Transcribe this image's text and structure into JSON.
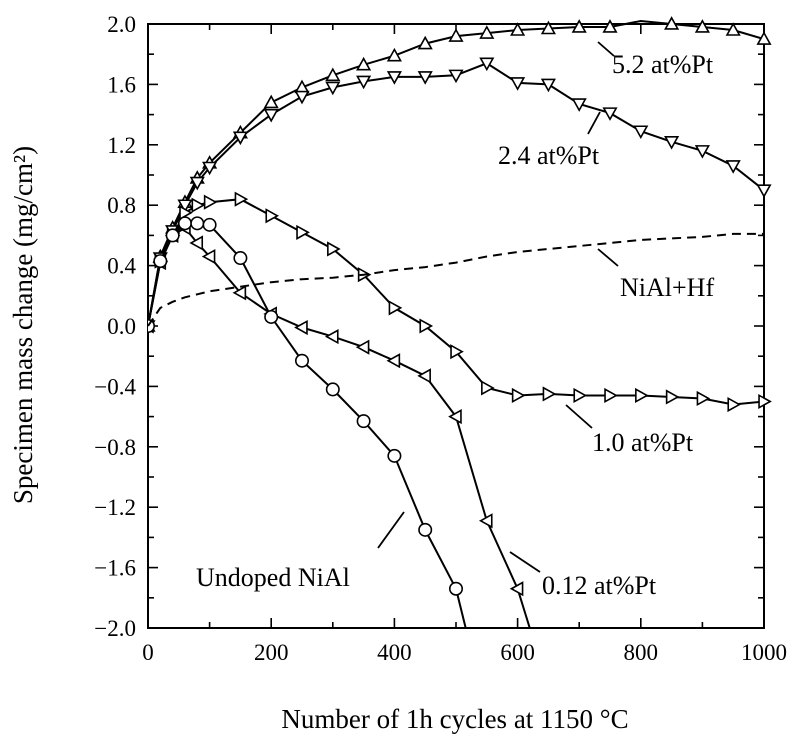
{
  "chart_data": {
    "type": "line",
    "title": "",
    "xlabel": "Number of 1h cycles at 1150 °C",
    "ylabel": "Specimen mass change (mg/cm²)",
    "xlim": [
      0,
      1000
    ],
    "ylim": [
      -2.0,
      2.0
    ],
    "x_ticks": [
      "0",
      "200",
      "400",
      "600",
      "800",
      "1000"
    ],
    "y_ticks": [
      "−2.0",
      "−1.6",
      "−1.2",
      "−0.8",
      "−0.4",
      "0.0",
      "0.4",
      "0.8",
      "1.2",
      "1.6",
      "2.0"
    ],
    "grid": false,
    "series": [
      {
        "name": "5.2 at%Pt",
        "marker": "triangle-up",
        "dash": "solid",
        "x": [
          0,
          20,
          40,
          60,
          80,
          100,
          150,
          200,
          250,
          300,
          350,
          400,
          450,
          500,
          550,
          600,
          650,
          700,
          750,
          800,
          850,
          900,
          950,
          1000
        ],
        "y": [
          0.0,
          0.46,
          0.65,
          0.82,
          0.98,
          1.08,
          1.28,
          1.48,
          1.58,
          1.66,
          1.73,
          1.79,
          1.87,
          1.92,
          1.94,
          1.96,
          1.97,
          1.98,
          1.98,
          2.02,
          2.0,
          1.98,
          1.96,
          1.9
        ]
      },
      {
        "name": "2.4 at%Pt",
        "marker": "triangle-down",
        "dash": "solid",
        "x": [
          0,
          20,
          40,
          60,
          80,
          100,
          150,
          200,
          250,
          300,
          350,
          400,
          450,
          500,
          550,
          600,
          650,
          700,
          750,
          800,
          850,
          900,
          950,
          1000
        ],
        "y": [
          0.0,
          0.45,
          0.63,
          0.8,
          0.95,
          1.05,
          1.25,
          1.4,
          1.52,
          1.58,
          1.62,
          1.65,
          1.65,
          1.66,
          1.74,
          1.61,
          1.6,
          1.47,
          1.41,
          1.29,
          1.22,
          1.16,
          1.06,
          0.9
        ]
      },
      {
        "name": "1.0 at%Pt",
        "marker": "triangle-right",
        "dash": "solid",
        "x": [
          0,
          20,
          40,
          60,
          80,
          100,
          150,
          200,
          250,
          300,
          350,
          400,
          450,
          500,
          550,
          600,
          650,
          700,
          750,
          800,
          850,
          900,
          950,
          1000
        ],
        "y": [
          0.0,
          0.43,
          0.6,
          0.75,
          0.8,
          0.82,
          0.84,
          0.73,
          0.62,
          0.51,
          0.34,
          0.12,
          0.0,
          -0.17,
          -0.41,
          -0.46,
          -0.45,
          -0.46,
          -0.46,
          -0.46,
          -0.47,
          -0.48,
          -0.52,
          -0.5
        ]
      },
      {
        "name": "0.12 at%Pt",
        "marker": "triangle-left",
        "dash": "solid",
        "x": [
          0,
          20,
          40,
          60,
          80,
          100,
          150,
          200,
          250,
          300,
          350,
          400,
          450,
          500,
          550,
          600
        ],
        "y": [
          0.0,
          0.42,
          0.6,
          0.65,
          0.55,
          0.46,
          0.22,
          0.08,
          -0.01,
          -0.07,
          -0.14,
          -0.23,
          -0.33,
          -0.6,
          -1.29,
          -1.74
        ]
      },
      {
        "name": "Undoped NiAl",
        "marker": "circle",
        "dash": "solid",
        "x": [
          0,
          20,
          40,
          60,
          80,
          100,
          150,
          200,
          250,
          300,
          350,
          400,
          450,
          500
        ],
        "y": [
          0.0,
          0.43,
          0.6,
          0.68,
          0.68,
          0.67,
          0.45,
          0.06,
          -0.23,
          -0.42,
          -0.63,
          -0.86,
          -1.35,
          -1.74
        ]
      },
      {
        "name": "NiAl+Hf",
        "marker": "none",
        "dash": "dashed",
        "x": [
          0,
          20,
          40,
          60,
          80,
          100,
          150,
          200,
          250,
          300,
          350,
          400,
          450,
          500,
          550,
          600,
          650,
          700,
          750,
          800,
          850,
          900,
          950,
          1000
        ],
        "y": [
          0.0,
          0.12,
          0.16,
          0.19,
          0.21,
          0.23,
          0.26,
          0.29,
          0.31,
          0.32,
          0.34,
          0.37,
          0.39,
          0.42,
          0.46,
          0.49,
          0.51,
          0.53,
          0.55,
          0.57,
          0.58,
          0.59,
          0.61,
          0.61
        ]
      }
    ],
    "annotations": [
      {
        "text": "5.2 at%Pt",
        "series": "5.2 at%Pt"
      },
      {
        "text": "2.4 at%Pt",
        "series": "2.4 at%Pt"
      },
      {
        "text": "NiAl+Hf",
        "series": "NiAl+Hf"
      },
      {
        "text": "1.0 at%Pt",
        "series": "1.0 at%Pt"
      },
      {
        "text": "Undoped NiAl",
        "series": "Undoped NiAl"
      },
      {
        "text": "0.12 at%Pt",
        "series": "0.12 at%Pt"
      }
    ]
  }
}
